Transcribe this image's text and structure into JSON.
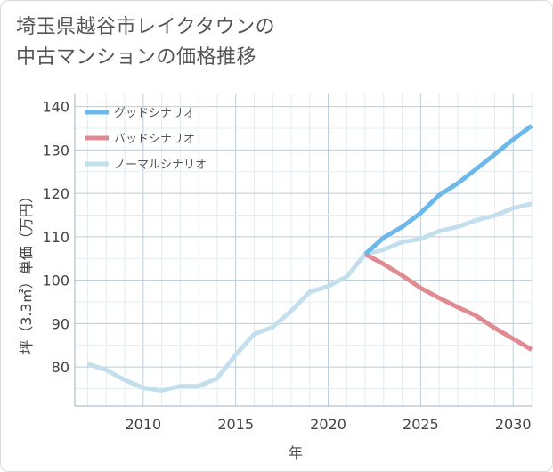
{
  "chart_data": {
    "type": "line",
    "title_lines": [
      "埼玉県越谷市レイクタウンの",
      "中古マンションの価格推移"
    ],
    "xlabel": "年",
    "ylabel": "坪（3.3㎡）単価（万円）",
    "xlim": [
      2006.3,
      2031
    ],
    "ylim": [
      71,
      143
    ],
    "xticks": [
      2010,
      2015,
      2020,
      2025,
      2030
    ],
    "yticks": [
      80,
      90,
      100,
      110,
      120,
      130,
      140
    ],
    "grid": true,
    "legend_position": "top-left",
    "series": [
      {
        "name": "グッドシナリオ",
        "color": "#6cb8ea",
        "points": [
          [
            2022,
            106
          ],
          [
            2023,
            109.8
          ],
          [
            2024,
            112.3
          ],
          [
            2025,
            115.5
          ],
          [
            2026,
            119.6
          ],
          [
            2027,
            122.3
          ],
          [
            2028,
            125.6
          ],
          [
            2029,
            129
          ],
          [
            2030,
            132.4
          ],
          [
            2031,
            135.6
          ]
        ]
      },
      {
        "name": "バッドシナリオ",
        "color": "#e08a92",
        "points": [
          [
            2022,
            106
          ],
          [
            2023,
            103.7
          ],
          [
            2024,
            101.1
          ],
          [
            2025,
            98.2
          ],
          [
            2026,
            95.9
          ],
          [
            2027,
            93.8
          ],
          [
            2028,
            91.8
          ],
          [
            2029,
            89
          ],
          [
            2030,
            86.5
          ],
          [
            2031,
            84
          ]
        ]
      },
      {
        "name": "ノーマルシナリオ",
        "color": "#c3dfee",
        "points": [
          [
            2007,
            80.7
          ],
          [
            2008,
            79.3
          ],
          [
            2009,
            77
          ],
          [
            2010,
            75.2
          ],
          [
            2011,
            74.6
          ],
          [
            2012,
            75.6
          ],
          [
            2013,
            75.6
          ],
          [
            2014,
            77.4
          ],
          [
            2015,
            82.8
          ],
          [
            2016,
            87.6
          ],
          [
            2017,
            89.2
          ],
          [
            2018,
            92.9
          ],
          [
            2019,
            97.3
          ],
          [
            2020,
            98.6
          ],
          [
            2021,
            100.8
          ],
          [
            2022,
            106
          ],
          [
            2023,
            107
          ],
          [
            2024,
            108.8
          ],
          [
            2025,
            109.5
          ],
          [
            2026,
            111.3
          ],
          [
            2027,
            112.3
          ],
          [
            2028,
            113.8
          ],
          [
            2029,
            114.9
          ],
          [
            2030,
            116.6
          ],
          [
            2031,
            117.6
          ]
        ]
      }
    ]
  }
}
